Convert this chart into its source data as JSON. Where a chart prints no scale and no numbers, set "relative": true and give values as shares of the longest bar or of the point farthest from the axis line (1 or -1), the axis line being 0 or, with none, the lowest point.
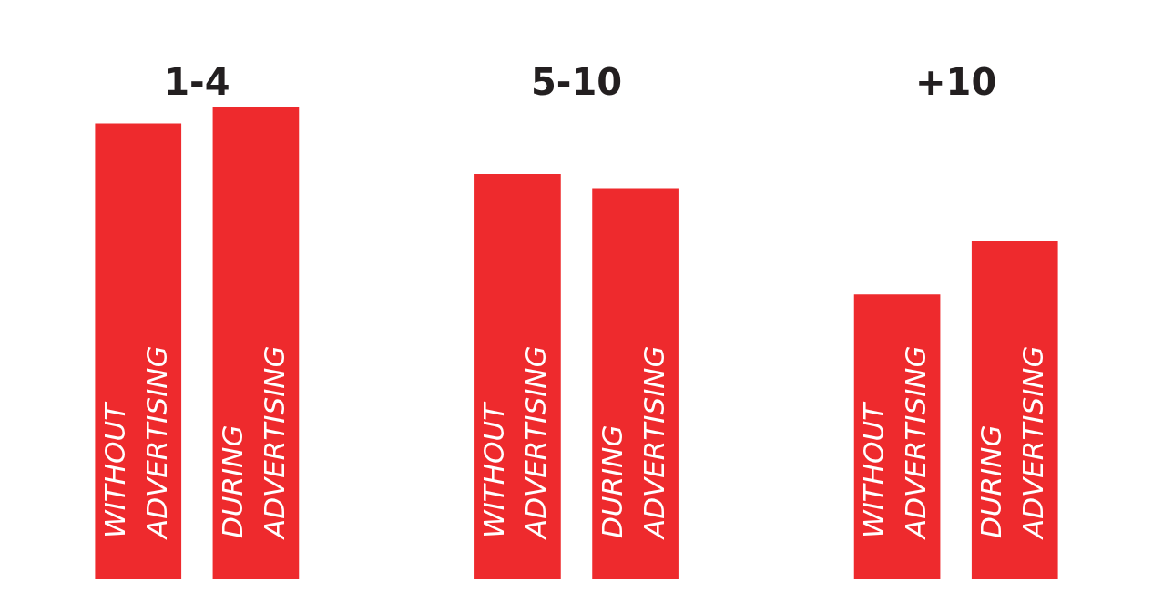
{
  "chart_data": {
    "type": "bar",
    "relative": true,
    "categories": [
      "1-4",
      "5-10",
      "+10"
    ],
    "series": [
      {
        "name": "WITHOUT ADVERTISING",
        "color": "#ee2a2d",
        "values": [
          0.966,
          0.859,
          0.604
        ]
      },
      {
        "name": "DURING ADVERTISING",
        "color": "#ee2a2d",
        "values": [
          1,
          0.829,
          0.716
        ]
      }
    ],
    "grid": false,
    "legend": false
  }
}
